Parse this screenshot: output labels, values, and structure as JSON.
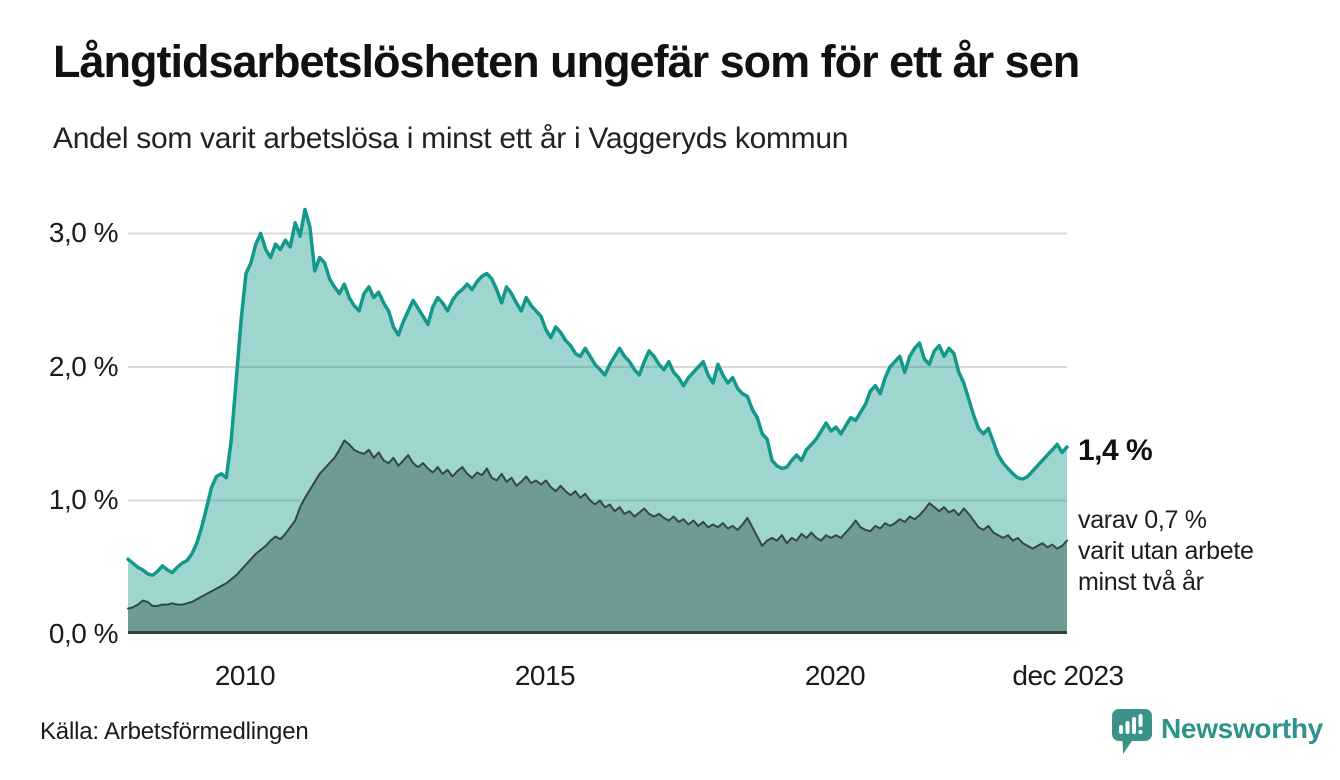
{
  "header": {
    "title": "Långtidsarbetslösheten ungefär som för ett år sen",
    "subtitle": "Andel som varit arbetslösa i minst ett år i Vaggeryds kommun"
  },
  "chart_data": {
    "type": "area",
    "title": "Långtidsarbetslösheten ungefär som för ett år sen",
    "subtitle": "Andel som varit arbetslösa i minst ett år i Vaggeryds kommun",
    "region": "Vaggeryds kommun",
    "unit": "%",
    "frequency": "monthly",
    "x_start": "jan 2008",
    "x_end": "dec 2023",
    "ylim": [
      0,
      3.25
    ],
    "gridline_values": [
      1,
      2,
      3
    ],
    "yticks": [
      "3,0 %",
      "2,0 %",
      "1,0 %",
      "0,0 %"
    ],
    "xticks": [
      "2010",
      "2015",
      "2020",
      "dec 2023"
    ],
    "colors": {
      "gridline": "#d9d9d9",
      "axis": "#3a3a3a",
      "line_one_year": "#14988a",
      "fill_one_year": "rgba(20,152,138,0.41)",
      "line_two_years": "#35474b",
      "fill_two_years": "#6f9b95"
    },
    "series": [
      {
        "id": "minst-ett-ar",
        "name": "Andel arbetslösa minst ett år",
        "color": "#14988a",
        "fill": "rgba(20,152,138,0.41)",
        "stroke_width": 3.5,
        "latest_value": 1.4,
        "values": [
          0.56,
          0.53,
          0.5,
          0.48,
          0.45,
          0.44,
          0.47,
          0.51,
          0.48,
          0.46,
          0.5,
          0.53,
          0.55,
          0.6,
          0.68,
          0.8,
          0.95,
          1.1,
          1.18,
          1.2,
          1.17,
          1.45,
          1.9,
          2.35,
          2.7,
          2.78,
          2.92,
          3.0,
          2.88,
          2.82,
          2.92,
          2.88,
          2.95,
          2.9,
          3.08,
          2.98,
          3.18,
          3.05,
          2.72,
          2.82,
          2.78,
          2.66,
          2.6,
          2.55,
          2.62,
          2.52,
          2.46,
          2.42,
          2.55,
          2.6,
          2.52,
          2.56,
          2.48,
          2.42,
          2.3,
          2.24,
          2.34,
          2.42,
          2.5,
          2.44,
          2.38,
          2.32,
          2.45,
          2.52,
          2.48,
          2.42,
          2.5,
          2.55,
          2.58,
          2.62,
          2.58,
          2.64,
          2.68,
          2.7,
          2.66,
          2.58,
          2.48,
          2.6,
          2.55,
          2.48,
          2.42,
          2.52,
          2.46,
          2.42,
          2.38,
          2.28,
          2.22,
          2.3,
          2.26,
          2.2,
          2.16,
          2.1,
          2.08,
          2.14,
          2.08,
          2.02,
          1.98,
          1.94,
          2.02,
          2.08,
          2.14,
          2.08,
          2.04,
          1.98,
          1.94,
          2.04,
          2.12,
          2.08,
          2.02,
          1.98,
          2.04,
          1.96,
          1.92,
          1.86,
          1.92,
          1.96,
          2.0,
          2.04,
          1.94,
          1.88,
          2.02,
          1.94,
          1.88,
          1.92,
          1.84,
          1.8,
          1.78,
          1.68,
          1.62,
          1.5,
          1.46,
          1.3,
          1.26,
          1.24,
          1.25,
          1.3,
          1.34,
          1.3,
          1.38,
          1.42,
          1.46,
          1.52,
          1.58,
          1.52,
          1.55,
          1.5,
          1.56,
          1.62,
          1.6,
          1.66,
          1.72,
          1.82,
          1.86,
          1.8,
          1.92,
          2.0,
          2.04,
          2.08,
          1.96,
          2.08,
          2.14,
          2.18,
          2.06,
          2.02,
          2.12,
          2.16,
          2.08,
          2.14,
          2.1,
          1.96,
          1.88,
          1.76,
          1.64,
          1.54,
          1.5,
          1.54,
          1.44,
          1.34,
          1.28,
          1.24,
          1.2,
          1.17,
          1.16,
          1.18,
          1.22,
          1.26,
          1.3,
          1.34,
          1.38,
          1.42,
          1.36,
          1.4
        ]
      },
      {
        "id": "minst-tva-ar",
        "name": "Andel arbetslösa minst två år",
        "color": "#35474b",
        "fill": "#6f9b95",
        "stroke_width": 2,
        "latest_value": 0.7,
        "values": [
          0.19,
          0.2,
          0.22,
          0.25,
          0.24,
          0.21,
          0.21,
          0.22,
          0.22,
          0.23,
          0.22,
          0.22,
          0.23,
          0.24,
          0.26,
          0.28,
          0.3,
          0.32,
          0.34,
          0.36,
          0.38,
          0.41,
          0.44,
          0.48,
          0.52,
          0.56,
          0.6,
          0.63,
          0.66,
          0.7,
          0.73,
          0.71,
          0.75,
          0.8,
          0.85,
          0.95,
          1.02,
          1.08,
          1.14,
          1.2,
          1.24,
          1.28,
          1.32,
          1.38,
          1.45,
          1.42,
          1.38,
          1.36,
          1.35,
          1.38,
          1.32,
          1.36,
          1.3,
          1.28,
          1.32,
          1.26,
          1.3,
          1.34,
          1.28,
          1.25,
          1.28,
          1.24,
          1.21,
          1.25,
          1.2,
          1.23,
          1.18,
          1.22,
          1.25,
          1.2,
          1.17,
          1.21,
          1.19,
          1.24,
          1.17,
          1.15,
          1.2,
          1.14,
          1.17,
          1.11,
          1.14,
          1.18,
          1.13,
          1.15,
          1.12,
          1.15,
          1.1,
          1.07,
          1.11,
          1.07,
          1.04,
          1.07,
          1.02,
          1.05,
          1.0,
          0.97,
          1.0,
          0.95,
          0.97,
          0.92,
          0.95,
          0.9,
          0.92,
          0.88,
          0.91,
          0.94,
          0.9,
          0.88,
          0.9,
          0.87,
          0.85,
          0.88,
          0.84,
          0.86,
          0.82,
          0.85,
          0.81,
          0.84,
          0.8,
          0.82,
          0.8,
          0.83,
          0.79,
          0.81,
          0.78,
          0.82,
          0.87,
          0.8,
          0.73,
          0.66,
          0.7,
          0.72,
          0.7,
          0.74,
          0.68,
          0.72,
          0.7,
          0.75,
          0.72,
          0.76,
          0.72,
          0.7,
          0.74,
          0.72,
          0.74,
          0.72,
          0.76,
          0.8,
          0.85,
          0.8,
          0.78,
          0.77,
          0.81,
          0.79,
          0.83,
          0.81,
          0.83,
          0.86,
          0.84,
          0.88,
          0.86,
          0.89,
          0.93,
          0.98,
          0.95,
          0.92,
          0.95,
          0.91,
          0.93,
          0.89,
          0.94,
          0.9,
          0.85,
          0.8,
          0.78,
          0.81,
          0.76,
          0.74,
          0.72,
          0.74,
          0.7,
          0.72,
          0.68,
          0.66,
          0.64,
          0.66,
          0.68,
          0.65,
          0.67,
          0.64,
          0.66,
          0.7
        ]
      }
    ],
    "annotations": {
      "latest_value": "1,4 %",
      "secondary": [
        "varav 0,7 %",
        "varit utan arbete",
        "minst två år"
      ]
    }
  },
  "footer": {
    "source": "Källa: Arbetsförmedlingen",
    "brand": "Newsworthy",
    "brand_color": "#2d938b"
  }
}
